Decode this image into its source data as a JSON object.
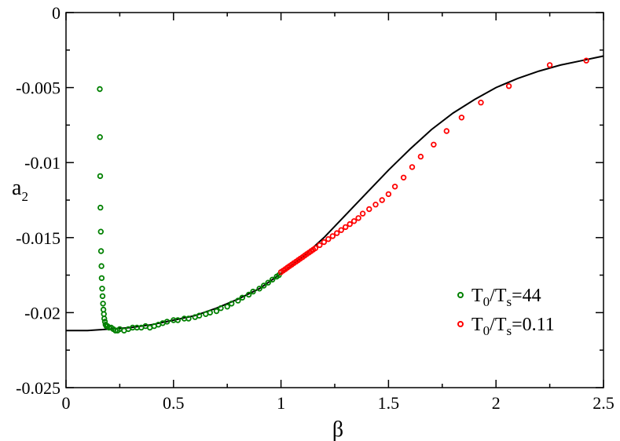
{
  "chart_data": {
    "type": "scatter",
    "xlabel": "β",
    "ylabel": "a",
    "ylabel_sub": "2",
    "xlim": [
      0,
      2.5
    ],
    "ylim": [
      -0.025,
      0
    ],
    "x_ticks": [
      0,
      0.5,
      1,
      1.5,
      2,
      2.5
    ],
    "x_tick_labels": [
      "0",
      "0.5",
      "1",
      "1.5",
      "2",
      "2.5"
    ],
    "y_ticks": [
      -0.025,
      -0.02,
      -0.015,
      -0.01,
      -0.005,
      0
    ],
    "y_tick_labels": [
      "-0.025",
      "-0.02",
      "-0.015",
      "-0.01",
      "-0.005",
      "0"
    ],
    "grid": false,
    "legend_position": "lower-right",
    "series": [
      {
        "name": "T0/Ts=44",
        "legend_main": "T",
        "legend_sub1": "0",
        "legend_mid": "/T",
        "legend_sub2": "s",
        "legend_tail": "=44",
        "color": "#008000",
        "marker": "circle-open",
        "points": [
          [
            0.157,
            -0.0051
          ],
          [
            0.158,
            -0.0083
          ],
          [
            0.159,
            -0.0109
          ],
          [
            0.16,
            -0.013
          ],
          [
            0.162,
            -0.0146
          ],
          [
            0.163,
            -0.0159
          ],
          [
            0.165,
            -0.0169
          ],
          [
            0.166,
            -0.0177
          ],
          [
            0.168,
            -0.0184
          ],
          [
            0.17,
            -0.0189
          ],
          [
            0.172,
            -0.0194
          ],
          [
            0.174,
            -0.0198
          ],
          [
            0.176,
            -0.0201
          ],
          [
            0.178,
            -0.0204
          ],
          [
            0.181,
            -0.0206
          ],
          [
            0.184,
            -0.0208
          ],
          [
            0.188,
            -0.0209
          ],
          [
            0.193,
            -0.0209
          ],
          [
            0.2,
            -0.021
          ],
          [
            0.21,
            -0.021
          ],
          [
            0.22,
            -0.0211
          ],
          [
            0.23,
            -0.0212
          ],
          [
            0.24,
            -0.0212
          ],
          [
            0.25,
            -0.0211
          ],
          [
            0.27,
            -0.0212
          ],
          [
            0.29,
            -0.0211
          ],
          [
            0.31,
            -0.021
          ],
          [
            0.33,
            -0.021
          ],
          [
            0.35,
            -0.021
          ],
          [
            0.37,
            -0.0209
          ],
          [
            0.39,
            -0.021
          ],
          [
            0.41,
            -0.0209
          ],
          [
            0.43,
            -0.0208
          ],
          [
            0.45,
            -0.0207
          ],
          [
            0.47,
            -0.0206
          ],
          [
            0.5,
            -0.0205
          ],
          [
            0.52,
            -0.0205
          ],
          [
            0.55,
            -0.0204
          ],
          [
            0.57,
            -0.0204
          ],
          [
            0.6,
            -0.0203
          ],
          [
            0.62,
            -0.0202
          ],
          [
            0.65,
            -0.0201
          ],
          [
            0.67,
            -0.02
          ],
          [
            0.7,
            -0.0199
          ],
          [
            0.72,
            -0.0197
          ],
          [
            0.75,
            -0.0196
          ],
          [
            0.77,
            -0.0194
          ],
          [
            0.8,
            -0.0192
          ],
          [
            0.82,
            -0.019
          ],
          [
            0.85,
            -0.0188
          ],
          [
            0.87,
            -0.0186
          ],
          [
            0.9,
            -0.0184
          ],
          [
            0.92,
            -0.0182
          ],
          [
            0.94,
            -0.018
          ],
          [
            0.96,
            -0.0178
          ],
          [
            0.98,
            -0.0176
          ],
          [
            0.99,
            -0.0175
          ],
          [
            1.0,
            -0.0173
          ]
        ]
      },
      {
        "name": "T0/Ts=0.11",
        "legend_main": "T",
        "legend_sub1": "0",
        "legend_mid": "/T",
        "legend_sub2": "s",
        "legend_tail": "=0.11",
        "color": "#ff0000",
        "marker": "circle-open",
        "points": [
          [
            1.0,
            -0.0173
          ],
          [
            1.01,
            -0.0172
          ],
          [
            1.02,
            -0.0171
          ],
          [
            1.03,
            -0.017
          ],
          [
            1.04,
            -0.0169
          ],
          [
            1.05,
            -0.0168
          ],
          [
            1.06,
            -0.0167
          ],
          [
            1.07,
            -0.0166
          ],
          [
            1.08,
            -0.0165
          ],
          [
            1.09,
            -0.0164
          ],
          [
            1.1,
            -0.0163
          ],
          [
            1.11,
            -0.0162
          ],
          [
            1.12,
            -0.0161
          ],
          [
            1.13,
            -0.016
          ],
          [
            1.14,
            -0.0159
          ],
          [
            1.15,
            -0.0158
          ],
          [
            1.16,
            -0.0157
          ],
          [
            1.18,
            -0.0155
          ],
          [
            1.2,
            -0.0153
          ],
          [
            1.22,
            -0.0151
          ],
          [
            1.24,
            -0.0149
          ],
          [
            1.26,
            -0.0147
          ],
          [
            1.28,
            -0.0145
          ],
          [
            1.3,
            -0.0143
          ],
          [
            1.32,
            -0.0141
          ],
          [
            1.34,
            -0.0139
          ],
          [
            1.36,
            -0.0137
          ],
          [
            1.38,
            -0.0134
          ],
          [
            1.41,
            -0.0131
          ],
          [
            1.44,
            -0.0128
          ],
          [
            1.47,
            -0.0125
          ],
          [
            1.5,
            -0.0121
          ],
          [
            1.53,
            -0.0116
          ],
          [
            1.57,
            -0.011
          ],
          [
            1.61,
            -0.0103
          ],
          [
            1.65,
            -0.0096
          ],
          [
            1.71,
            -0.0088
          ],
          [
            1.77,
            -0.0079
          ],
          [
            1.84,
            -0.007
          ],
          [
            1.93,
            -0.006
          ],
          [
            2.06,
            -0.0049
          ],
          [
            2.25,
            -0.0035
          ],
          [
            2.42,
            -0.0032
          ]
        ]
      }
    ],
    "fit_curve": {
      "color": "#000000",
      "points": [
        [
          0,
          -0.0212
        ],
        [
          0.1,
          -0.0212
        ],
        [
          0.2,
          -0.0211
        ],
        [
          0.3,
          -0.021
        ],
        [
          0.4,
          -0.0208
        ],
        [
          0.5,
          -0.0205
        ],
        [
          0.6,
          -0.0202
        ],
        [
          0.7,
          -0.0197
        ],
        [
          0.8,
          -0.0191
        ],
        [
          0.9,
          -0.0184
        ],
        [
          1.0,
          -0.0174
        ],
        [
          1.1,
          -0.0163
        ],
        [
          1.2,
          -0.015
        ],
        [
          1.3,
          -0.0135
        ],
        [
          1.4,
          -0.012
        ],
        [
          1.5,
          -0.0105
        ],
        [
          1.6,
          -0.0091
        ],
        [
          1.7,
          -0.0078
        ],
        [
          1.8,
          -0.0067
        ],
        [
          1.9,
          -0.0058
        ],
        [
          2.0,
          -0.005
        ],
        [
          2.1,
          -0.0044
        ],
        [
          2.2,
          -0.0039
        ],
        [
          2.3,
          -0.0035
        ],
        [
          2.4,
          -0.0032
        ],
        [
          2.5,
          -0.0029
        ]
      ]
    }
  }
}
